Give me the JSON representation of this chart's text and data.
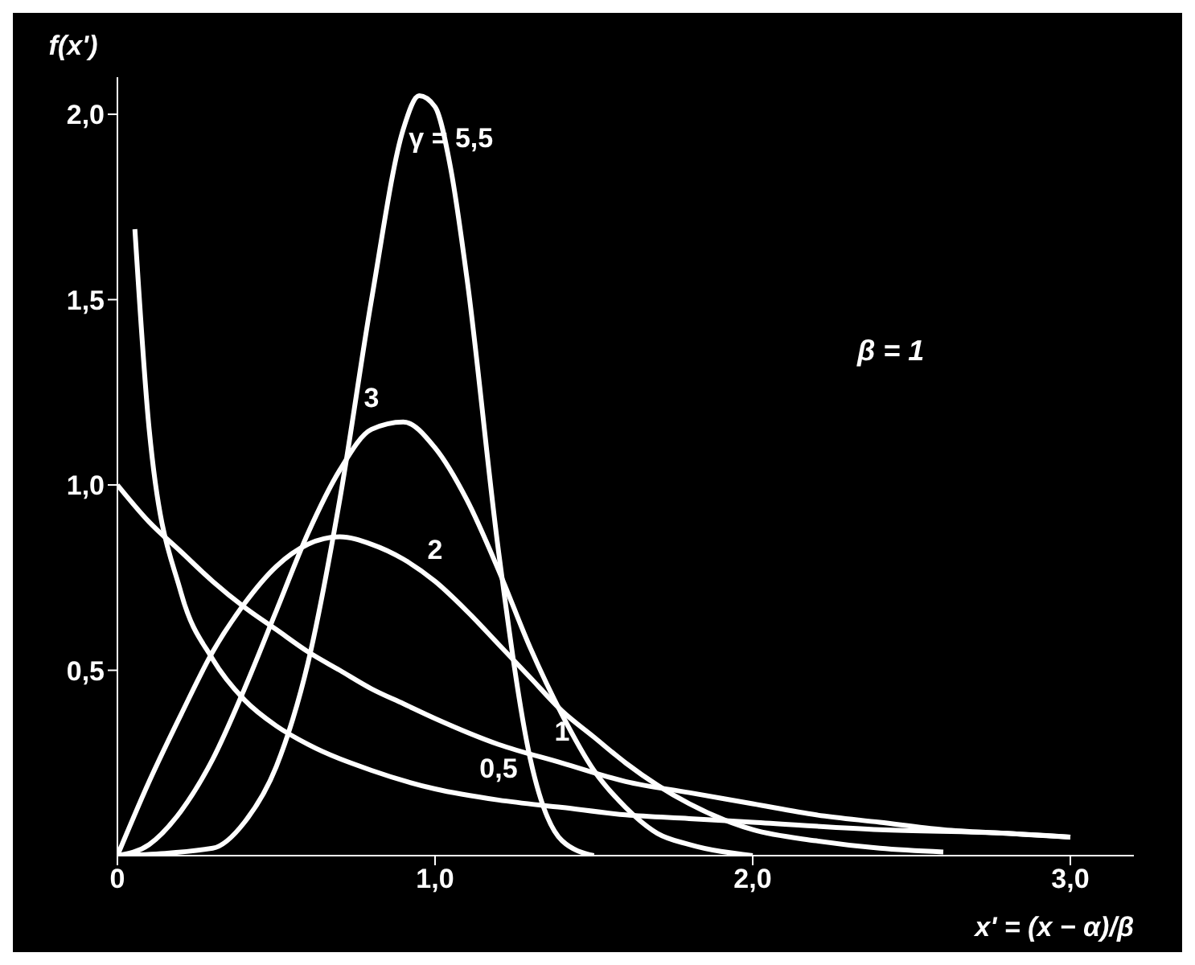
{
  "chart_data": {
    "type": "line",
    "xlabel": "x' = (x − α)/β",
    "ylabel": "f(x')",
    "xlim": [
      0,
      3.2
    ],
    "xticks": [
      0,
      {
        "value": 1,
        "label": "1,0"
      },
      {
        "value": 2,
        "label": "2,0"
      },
      {
        "value": 3,
        "label": "3,0"
      }
    ],
    "ylim": [
      0,
      2.1
    ],
    "yticks": [
      {
        "value": 0.5,
        "label": "0,5"
      },
      {
        "value": 1,
        "label": "1,0"
      },
      {
        "value": 1.5,
        "label": "1,5"
      },
      {
        "value": 2,
        "label": "2,0"
      }
    ],
    "grid": false,
    "legend": false,
    "marker": "none",
    "line_style": "solid",
    "series": [
      {
        "color": "#ffffff",
        "x": [
          0.055,
          0.1,
          0.2,
          0.3,
          0.4,
          0.5,
          0.6,
          0.8,
          1.0,
          1.2,
          1.4,
          1.6,
          1.8,
          2.0,
          2.4,
          2.8,
          3.0
        ],
        "values": [
          1.69,
          1.15,
          0.71,
          0.53,
          0.42,
          0.35,
          0.3,
          0.23,
          0.18,
          0.15,
          0.13,
          0.11,
          0.1,
          0.09,
          0.07,
          0.06,
          0.05
        ]
      },
      {
        "color": "#ffffff",
        "x": [
          0,
          0.1,
          0.2,
          0.3,
          0.4,
          0.5,
          0.6,
          0.7,
          0.8,
          0.9,
          1.0,
          1.2,
          1.4,
          1.6,
          1.8,
          2.0,
          2.2,
          2.4,
          2.6,
          2.8,
          3.0
        ],
        "values": [
          1,
          0.9,
          0.82,
          0.74,
          0.67,
          0.61,
          0.55,
          0.5,
          0.45,
          0.41,
          0.37,
          0.3,
          0.25,
          0.2,
          0.17,
          0.14,
          0.11,
          0.09,
          0.07,
          0.06,
          0.05
        ]
      },
      {
        "color": "#ffffff",
        "x": [
          0,
          0.1,
          0.2,
          0.3,
          0.4,
          0.5,
          0.6,
          0.7,
          0.8,
          0.9,
          1.0,
          1.1,
          1.2,
          1.3,
          1.4,
          1.5,
          1.6,
          1.8,
          2.0,
          2.2,
          2.4,
          2.6
        ],
        "values": [
          0,
          0.2,
          0.38,
          0.55,
          0.68,
          0.78,
          0.84,
          0.86,
          0.84,
          0.8,
          0.74,
          0.66,
          0.57,
          0.48,
          0.39,
          0.32,
          0.25,
          0.14,
          0.07,
          0.04,
          0.02,
          0.01
        ]
      },
      {
        "color": "#ffffff",
        "x": [
          0,
          0.1,
          0.2,
          0.3,
          0.4,
          0.5,
          0.6,
          0.7,
          0.8,
          0.9,
          1.0,
          1.1,
          1.2,
          1.3,
          1.4,
          1.5,
          1.6,
          1.7,
          1.8,
          2.0
        ],
        "values": [
          0,
          0.03,
          0.12,
          0.26,
          0.45,
          0.66,
          0.87,
          1.04,
          1.15,
          1.17,
          1.1,
          0.96,
          0.77,
          0.56,
          0.38,
          0.23,
          0.13,
          0.06,
          0.03,
          0
        ]
      },
      {
        "color": "#ffffff",
        "x": [
          0,
          0.3,
          0.4,
          0.5,
          0.6,
          0.7,
          0.8,
          0.9,
          0.95,
          1.0,
          1.05,
          1.1,
          1.2,
          1.3,
          1.4,
          1.5
        ],
        "values": [
          0,
          0.02,
          0.09,
          0.24,
          0.52,
          0.96,
          1.5,
          1.96,
          2.05,
          2.02,
          1.85,
          1.56,
          0.82,
          0.26,
          0.04,
          0
        ]
      }
    ],
    "annotations": [
      {
        "text": "γ = 5,5",
        "x": 1.05,
        "y": 1.85
      },
      {
        "text": "3",
        "x": 0.8,
        "y": 1.15
      },
      {
        "text": "2",
        "x": 1.0,
        "y": 0.74
      },
      {
        "text": "1",
        "x": 1.4,
        "y": 0.25
      },
      {
        "text": "0,5",
        "x": 1.2,
        "y": 0.15
      },
      "β = 1"
    ]
  }
}
